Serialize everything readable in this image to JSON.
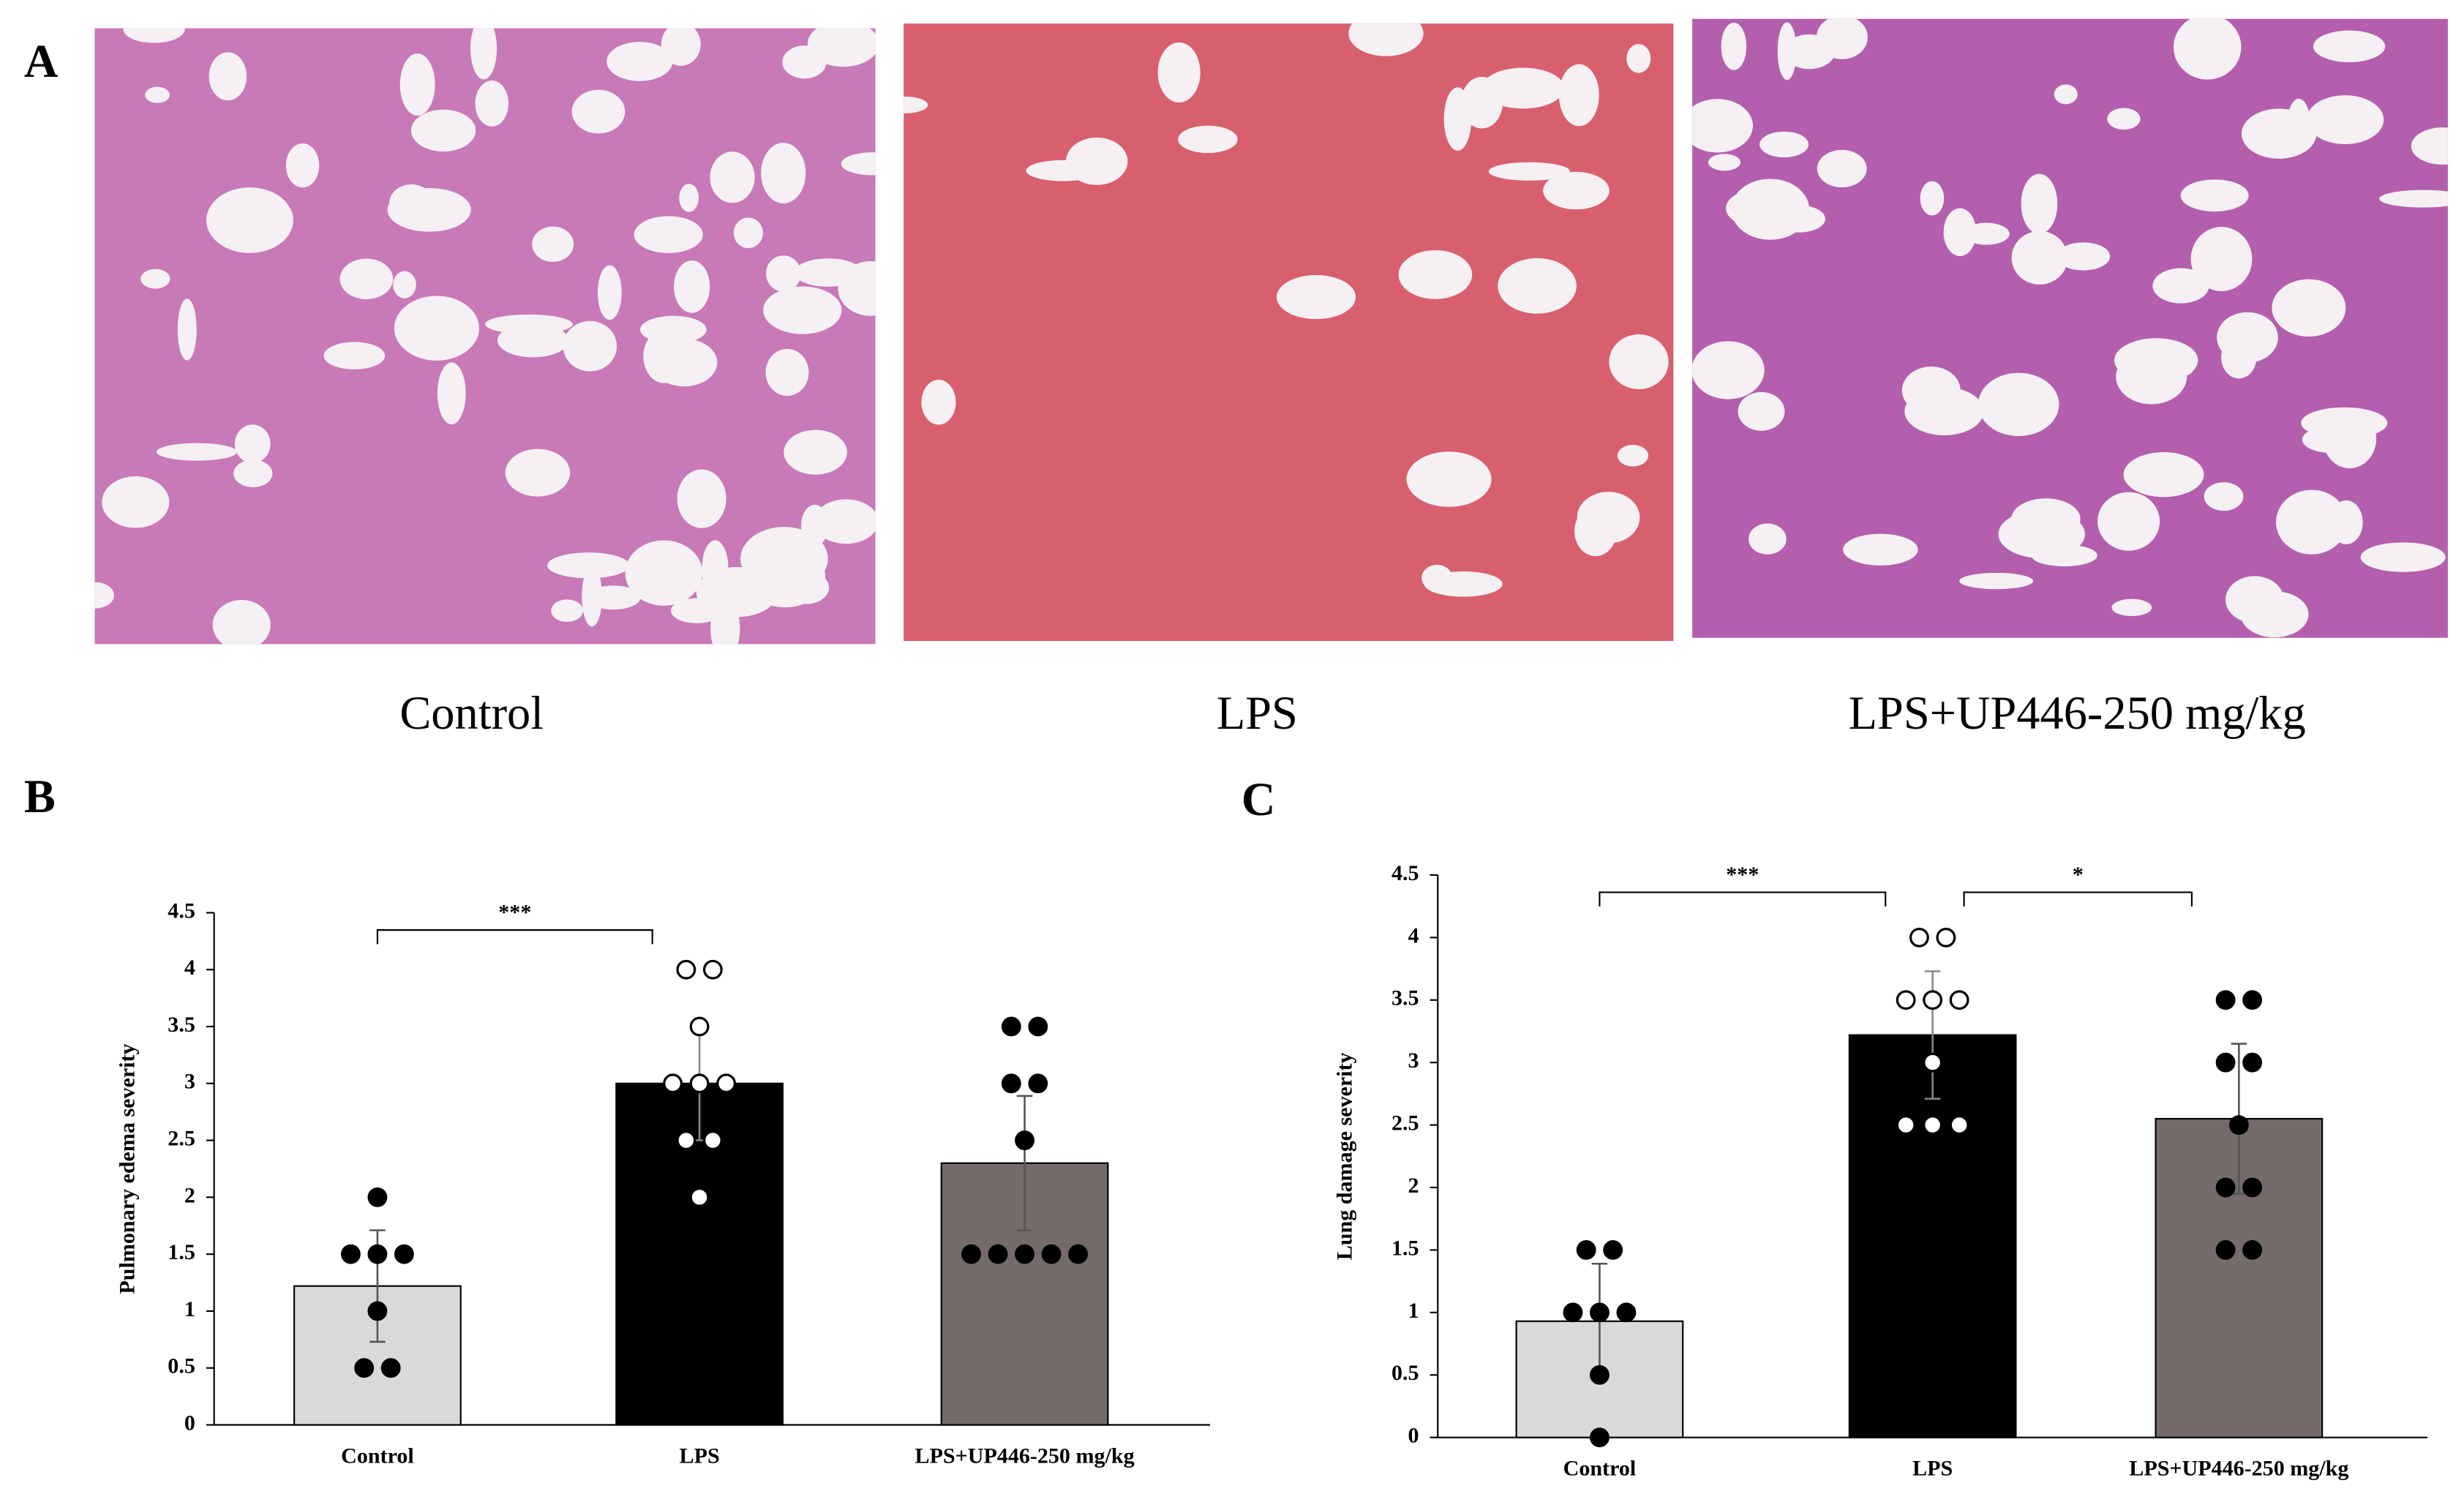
{
  "figure": {
    "panel_labels": [
      "A",
      "B",
      "C"
    ],
    "image_captions": [
      "Control",
      "LPS",
      "LPS+UP446-250 mg/kg"
    ]
  },
  "chart_data": [
    {
      "type": "bar",
      "y_label": "Pulmonary edema severity",
      "categories": [
        "Control",
        "LPS",
        "LPS+UP446-250 mg/kg"
      ],
      "values": [
        1.22,
        3.0,
        2.3
      ],
      "errors": [
        0.49,
        0.5,
        0.59
      ],
      "colors": [
        "#d9d9d9",
        "#000000",
        "#756b6b"
      ],
      "points": [
        [
          2,
          1.5,
          1.5,
          1.5,
          1,
          0.5,
          0.5
        ],
        [
          4,
          4,
          3.5,
          3,
          3,
          3,
          2.5,
          2.5,
          2
        ],
        [
          3.5,
          3.5,
          3,
          3,
          2.5,
          1.5,
          1.5,
          1.5,
          1.5,
          1.5
        ]
      ],
      "point_fills": [
        "#000000",
        "#ffffff",
        "#000000"
      ],
      "significance": [
        {
          "between": [
            0,
            1
          ],
          "label": "***"
        }
      ],
      "ylim": [
        0,
        4.5
      ],
      "yticks": [
        0,
        0.5,
        1,
        1.5,
        2,
        2.5,
        3,
        3.5,
        4,
        4.5
      ]
    },
    {
      "type": "bar",
      "y_label": "Lung damage severity",
      "categories": [
        "Control",
        "LPS",
        "LPS+UP446-250 mg/kg"
      ],
      "values": [
        0.93,
        3.22,
        2.55
      ],
      "errors": [
        0.46,
        0.51,
        0.6
      ],
      "colors": [
        "#d9d9d9",
        "#000000",
        "#756b6b"
      ],
      "points": [
        [
          1.5,
          1.5,
          1,
          1,
          1,
          0.5,
          0
        ],
        [
          4,
          4,
          3.5,
          3.5,
          3.5,
          3,
          2.5,
          2.5,
          2.5
        ],
        [
          3.5,
          3.5,
          3,
          3,
          2.5,
          2,
          2,
          1.5,
          1.5
        ]
      ],
      "point_fills": [
        "#000000",
        "#ffffff",
        "#000000"
      ],
      "significance": [
        {
          "between": [
            0,
            1
          ],
          "label": "***"
        },
        {
          "between": [
            1,
            2
          ],
          "label": "*"
        }
      ],
      "ylim": [
        0,
        4.5
      ],
      "yticks": [
        0,
        0.5,
        1,
        1.5,
        2,
        2.5,
        3,
        3.5,
        4,
        4.5
      ]
    }
  ]
}
